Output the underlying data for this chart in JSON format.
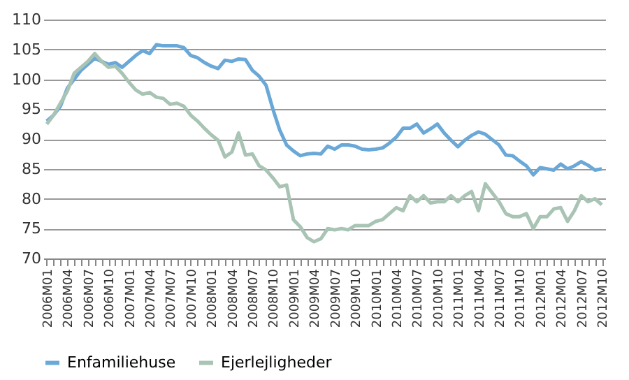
{
  "chart_data": {
    "type": "line",
    "categories": [
      "2006M01",
      null,
      null,
      "2006M04",
      null,
      null,
      "2006M07",
      null,
      null,
      "2006M10",
      null,
      null,
      "2007M01",
      null,
      null,
      "2007M04",
      null,
      null,
      "2007M07",
      null,
      null,
      "2007M10",
      null,
      null,
      "2008M01",
      null,
      null,
      "2008M04",
      null,
      null,
      "2008M07",
      null,
      null,
      "2008M10",
      null,
      null,
      "2009M01",
      null,
      null,
      "2009M04",
      null,
      null,
      "2009M07",
      null,
      null,
      "2009M10",
      null,
      null,
      "2010M01",
      null,
      null,
      "2010M04",
      null,
      null,
      "2010M07",
      null,
      null,
      "2010M10",
      null,
      null,
      "2011M01",
      null,
      null,
      "2011M04",
      null,
      null,
      "2011M07",
      null,
      null,
      "2011M10",
      null,
      null,
      "2012M01",
      null,
      null,
      "2012M04",
      null,
      null,
      "2012M07",
      null,
      null,
      "2012M10"
    ],
    "series": [
      {
        "name": "Enfamiliehuse",
        "color": "#6aa8d8",
        "values": [
          93,
          94,
          95.5,
          98.5,
          100,
          101.5,
          102.5,
          103.5,
          103,
          102.5,
          102.8,
          102,
          103,
          104,
          104.8,
          104.3,
          105.8,
          105.6,
          105.6,
          105.6,
          105.3,
          104,
          103.6,
          102.8,
          102.2,
          101.8,
          103.2,
          103,
          103.4,
          103.3,
          101.5,
          100.5,
          99,
          95,
          91.5,
          89,
          88,
          87.2,
          87.5,
          87.6,
          87.5,
          88.8,
          88.3,
          89,
          89,
          88.8,
          88.3,
          88.2,
          88.3,
          88.5,
          89.3,
          90.3,
          91.8,
          91.8,
          92.5,
          91,
          91.7,
          92.5,
          91,
          89.8,
          88.7,
          89.8,
          90.6,
          91.2,
          90.8,
          89.9,
          89,
          87.3,
          87.2,
          86.3,
          85.5,
          84,
          85.2,
          85,
          84.8,
          85.8,
          85,
          85.5,
          86.2,
          85.6,
          84.8,
          85
        ]
      },
      {
        "name": "Ejerlejligheder",
        "color": "#a9c4b4",
        "values": [
          92.5,
          94,
          96,
          98,
          101,
          102,
          103,
          104.3,
          103,
          102,
          102.2,
          101,
          99.5,
          98.2,
          97.5,
          97.8,
          97,
          96.8,
          95.8,
          96,
          95.5,
          94,
          93,
          91.8,
          90.7,
          89.8,
          87,
          87.8,
          91,
          87.3,
          87.5,
          85.5,
          84.8,
          83.5,
          82,
          82.3,
          76.5,
          75.3,
          73.5,
          72.8,
          73.3,
          75,
          74.8,
          75,
          74.8,
          75.5,
          75.5,
          75.5,
          76.2,
          76.5,
          77.5,
          78.5,
          78,
          80.5,
          79.5,
          80.5,
          79.3,
          79.5,
          79.5,
          80.5,
          79.5,
          80.5,
          81.2,
          78,
          82.5,
          81,
          79.5,
          77.5,
          77,
          77,
          77.5,
          75,
          77,
          77,
          78.3,
          78.5,
          76.2,
          78,
          80.5,
          79.5,
          80,
          79
        ]
      }
    ],
    "ylim": [
      70,
      110
    ],
    "yticks": [
      70,
      75,
      80,
      85,
      90,
      95,
      100,
      105,
      110
    ],
    "grid": "y",
    "legend": "bottom",
    "line_style": "solid",
    "marker": "none"
  }
}
